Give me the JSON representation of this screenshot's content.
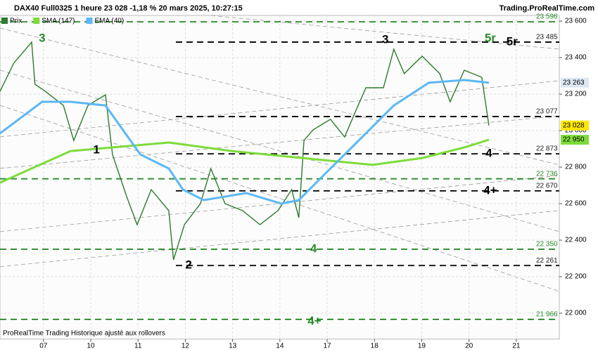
{
  "header": {
    "title": "DAX40 Full0325 1 heure 23 028 -1,18 % 20 mars 2025, 10:27:15",
    "site": "Trading.ProRealTime.com",
    "footer": "ProRealTime Trading  Historique ajusté aux rollovers"
  },
  "chart_data": {
    "type": "line",
    "xlim": [
      -0.92,
      10.91
    ],
    "xticks": [
      {
        "value": 0,
        "label": "07"
      },
      {
        "value": 1,
        "label": "10"
      },
      {
        "value": 2,
        "label": "11"
      },
      {
        "value": 3,
        "label": "12"
      },
      {
        "value": 4,
        "label": "13"
      },
      {
        "value": 5,
        "label": "14"
      },
      {
        "value": 6,
        "label": "17"
      },
      {
        "value": 7,
        "label": "18"
      },
      {
        "value": 8,
        "label": "19"
      },
      {
        "value": 9,
        "label": "20"
      },
      {
        "value": 10,
        "label": "21"
      }
    ],
    "ylim": [
      21858,
      23631
    ],
    "yticks": [
      {
        "value": 22000,
        "label": "22 000"
      },
      {
        "value": 22200,
        "label": "22 200"
      },
      {
        "value": 22400,
        "label": "22 400"
      },
      {
        "value": 22600,
        "label": "22 600"
      },
      {
        "value": 22800,
        "label": "22 800"
      },
      {
        "value": 23000,
        "label": "23 000"
      },
      {
        "value": 23200,
        "label": "23 200"
      },
      {
        "value": 23400,
        "label": "23 400"
      },
      {
        "value": 23600,
        "label": "23 600"
      }
    ],
    "grid": true,
    "series": [
      {
        "name": "Prix",
        "color": "#2d7a2d",
        "last_label": "23 028",
        "x": [
          -0.92,
          -0.63,
          -0.25,
          -0.18,
          0.04,
          0.42,
          0.64,
          0.94,
          1.31,
          1.46,
          1.76,
          1.98,
          2.28,
          2.65,
          2.75,
          2.98,
          3.32,
          3.54,
          3.84,
          4.21,
          4.58,
          4.96,
          5.25,
          5.4,
          5.51,
          5.7,
          6.07,
          6.37,
          6.59,
          6.82,
          7.19,
          7.41,
          7.63,
          8.01,
          8.38,
          8.6,
          8.9,
          9.27,
          9.42
        ],
        "values": [
          23215,
          23369,
          23485,
          23254,
          23215,
          23138,
          22946,
          23138,
          23196,
          22869,
          22638,
          22485,
          22677,
          22562,
          22292,
          22485,
          22600,
          22792,
          22600,
          22562,
          22485,
          22562,
          22677,
          22523,
          22946,
          23004,
          23062,
          22965,
          23100,
          23235,
          23235,
          23446,
          23312,
          23408,
          23312,
          23158,
          23331,
          23292,
          23028
        ]
      },
      {
        "name": "SMA (147)",
        "color": "#7ddc3a",
        "last_label": "22 950",
        "x": [
          -0.92,
          0.57,
          1.46,
          2.65,
          3.99,
          5.48,
          6.96,
          8.01,
          8.9,
          9.42
        ],
        "values": [
          22715,
          22888,
          22908,
          22935,
          22888,
          22850,
          22812,
          22850,
          22908,
          22950
        ]
      },
      {
        "name": "EMA (40)",
        "color": "#5bb8f5",
        "last_label": "23 263",
        "x": [
          -0.92,
          -0.03,
          0.57,
          1.31,
          2.05,
          2.65,
          2.95,
          3.39,
          4.29,
          5.03,
          5.4,
          5.92,
          6.52,
          7.41,
          8.15,
          8.9,
          9.42
        ],
        "values": [
          22985,
          23158,
          23158,
          23138,
          22869,
          22792,
          22677,
          22619,
          22658,
          22600,
          22619,
          22754,
          22908,
          23138,
          23262,
          23277,
          23263
        ]
      }
    ],
    "levels": [
      {
        "value": 23596,
        "value_label": "23 596",
        "color": "#2a8a2a",
        "start": -0.92
      },
      {
        "value": 23485,
        "value_label": "23 485",
        "color": "#000000",
        "start": 2.8
      },
      {
        "value": 23077,
        "value_label": "23 077",
        "color": "#000000",
        "start": 2.8
      },
      {
        "value": 22873,
        "value_label": "22 873",
        "color": "#000000",
        "start": 2.8
      },
      {
        "value": 22736,
        "value_label": "22 736",
        "color": "#2a8a2a",
        "start": -0.92
      },
      {
        "value": 22670,
        "value_label": "22 670",
        "color": "#000000",
        "start": 2.8
      },
      {
        "value": 22350,
        "value_label": "22 350",
        "color": "#2a8a2a",
        "start": -0.92
      },
      {
        "value": 22261,
        "value_label": "22 261",
        "color": "#000000",
        "start": 2.8
      },
      {
        "value": 21966,
        "value_label": "21 966",
        "color": "#2a8a2a",
        "start": -0.92
      }
    ],
    "annotations": [
      {
        "text": "3",
        "x": -0.03,
        "y": 23504,
        "color": "#2a8a2a"
      },
      {
        "text": "3",
        "x": 7.23,
        "y": 23496,
        "color": "#000000"
      },
      {
        "text": "5r",
        "x": 9.45,
        "y": 23504,
        "color": "#2a8a2a"
      },
      {
        "text": "5r",
        "x": 9.91,
        "y": 23485,
        "color": "#000000"
      },
      {
        "text": "1",
        "x": 1.12,
        "y": 22892,
        "color": "#000000"
      },
      {
        "text": "4",
        "x": 9.42,
        "y": 22873,
        "color": "#000000"
      },
      {
        "text": "4+",
        "x": 9.45,
        "y": 22669,
        "color": "#000000"
      },
      {
        "text": "4",
        "x": 5.71,
        "y": 22350,
        "color": "#2a8a2a"
      },
      {
        "text": "2",
        "x": 3.07,
        "y": 22262,
        "color": "#000000"
      },
      {
        "text": "4+",
        "x": 5.73,
        "y": 21954,
        "color": "#2a8a2a"
      }
    ]
  }
}
